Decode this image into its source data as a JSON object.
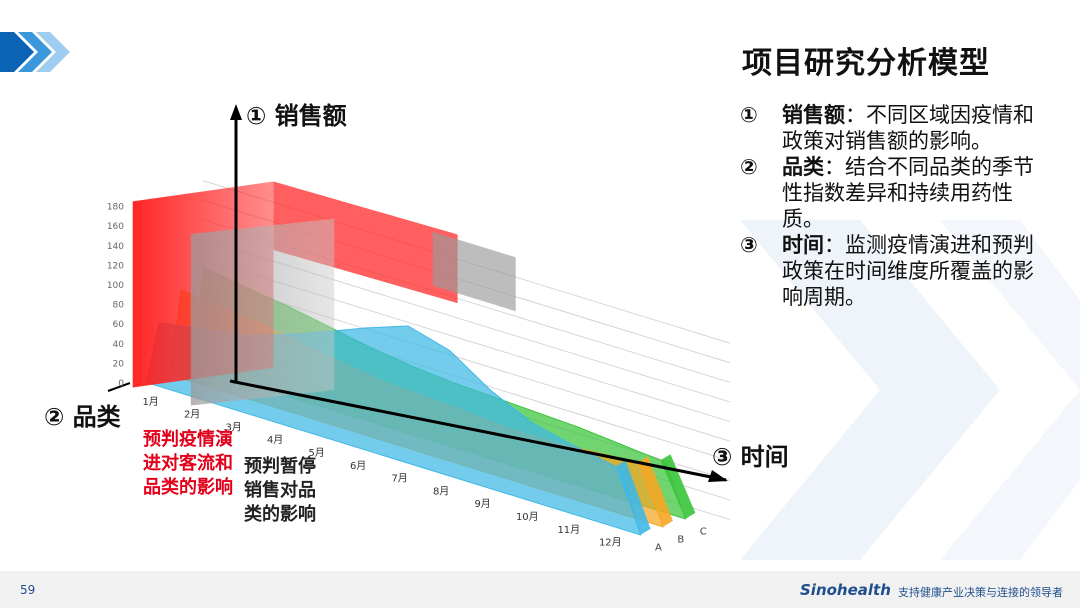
{
  "slide": {
    "title": "项目研究分析模型",
    "page_number": "59",
    "brand": "Sinohealth",
    "slogan": "支持健康产业决策与连接的领导者"
  },
  "axes_labels": {
    "sales": "① 销售额",
    "category": "② 品类",
    "time": "③ 时间"
  },
  "description": [
    {
      "num": "①",
      "bold": "销售额",
      "text": "：不同区域因疫情和政策对销售额的影响。"
    },
    {
      "num": "②",
      "bold": "品类",
      "text": "：结合不同品类的季节性指数差异和持续用药性质。"
    },
    {
      "num": "③",
      "bold": "时间",
      "text": "：监测疫情演进和预判政策在时间维度所覆盖的影响周期。"
    }
  ],
  "annotations": {
    "red": "预判疫情演进对客流和品类的影响",
    "dark": "预判暂停销售对品类的影响"
  },
  "chart_data": {
    "type": "area",
    "chart_style": "3d",
    "y_ticks": [
      "0",
      "20",
      "40",
      "60",
      "80",
      "100",
      "120",
      "140",
      "160",
      "180"
    ],
    "ylim": [
      0,
      180
    ],
    "x_ticks": [
      "1月",
      "2月",
      "3月",
      "4月",
      "5月",
      "6月",
      "7月",
      "8月",
      "9月",
      "10月",
      "11月",
      "12月"
    ],
    "depth_ticks": [
      "A",
      "B",
      "C"
    ],
    "series": [
      {
        "name": "A",
        "color": "#3fb8e6",
        "values": [
          65,
          72,
          78,
          92,
          108,
          125,
          140,
          128,
          100,
          80,
          70,
          62
        ]
      },
      {
        "name": "B",
        "color": "#f5a623",
        "values": [
          90,
          85,
          80,
          72,
          66,
          60,
          58,
          55,
          52,
          52,
          55,
          58
        ]
      },
      {
        "name": "C",
        "color": "#39c43a",
        "values": [
          105,
          98,
          92,
          84,
          76,
          70,
          66,
          64,
          62,
          60,
          56,
          52
        ]
      }
    ]
  }
}
